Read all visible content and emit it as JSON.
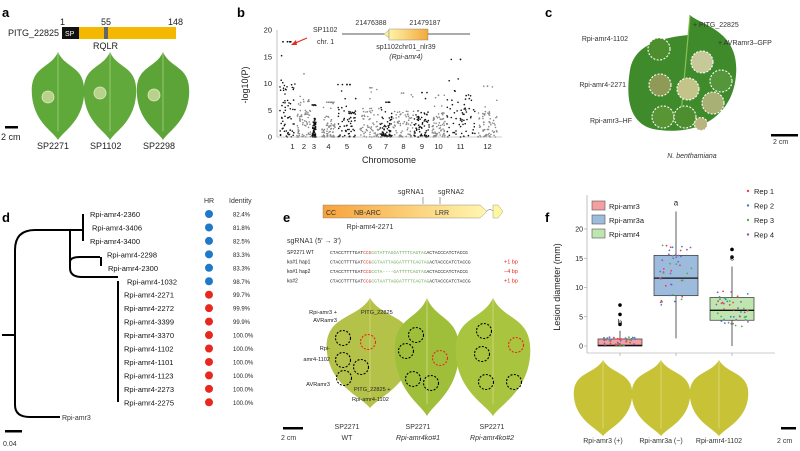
{
  "panels": {
    "a": "a",
    "b": "b",
    "c": "c",
    "d": "d",
    "e": "e",
    "f": "f"
  },
  "panel_a": {
    "protein": "PITG_22825",
    "pos_start": "1",
    "pos_mid": "55",
    "pos_end": "148",
    "sp_label": "SP",
    "motif": "RQLR",
    "scale": "2 cm",
    "leaves": [
      "SP2271",
      "SP1102",
      "SP2298"
    ],
    "colors": {
      "sp": "#111111",
      "protein": "#f5b800",
      "motif": "#666666"
    }
  },
  "panel_b": {
    "inset_label1": "SP1102",
    "inset_label2": "chr. 1",
    "coord_start": "21476388",
    "coord_end": "21479187",
    "gene": "sp1102chr01_nlr39",
    "gene_alias": "(Rpi-amr4)"
  },
  "panel_c": {
    "labels": [
      "Rpi-amr4-1102",
      "Rpi-amr4-2271",
      "Rpi-amr3–HF"
    ],
    "plus1": "+ PITG_22825",
    "plus2": "+ AVRamr3–GFP",
    "scale": "2 cm",
    "species": "N. benthamiana"
  },
  "panel_d": {
    "hr_header": "HR",
    "identity_header": "Identity",
    "scale": "0.04",
    "outgroup": "Rpi-amr3",
    "rows": [
      {
        "name": "Rpi-amr4-2360",
        "hr": "blue",
        "identity": "82.4%"
      },
      {
        "name": "Rpi-amr4-3406",
        "hr": "blue",
        "identity": "81.8%"
      },
      {
        "name": "Rpi-amr4-3400",
        "hr": "blue",
        "identity": "82.5%"
      },
      {
        "name": "Rpi-amr4-2298",
        "hr": "blue",
        "identity": "83.3%"
      },
      {
        "name": "Rpi-amr4-2300",
        "hr": "blue",
        "identity": "83.3%"
      },
      {
        "name": "Rpi-amr4-1032",
        "hr": "blue",
        "identity": "98.7%"
      },
      {
        "name": "Rpi-amr4-2271",
        "hr": "red",
        "identity": "99.7%"
      },
      {
        "name": "Rpi-amr4-2272",
        "hr": "red",
        "identity": "99.9%"
      },
      {
        "name": "Rpi-amr4-3399",
        "hr": "red",
        "identity": "99.9%"
      },
      {
        "name": "Rpi-amr4-3370",
        "hr": "red",
        "identity": "100.0%"
      },
      {
        "name": "Rpi-amr4-1102",
        "hr": "red",
        "identity": "100.0%"
      },
      {
        "name": "Rpi-amr4-1101",
        "hr": "red",
        "identity": "100.0%"
      },
      {
        "name": "Rpi-amr4-1123",
        "hr": "red",
        "identity": "100.0%"
      },
      {
        "name": "Rpi-amr4-2273",
        "hr": "red",
        "identity": "100.0%"
      },
      {
        "name": "Rpi-amr4-2275",
        "hr": "red",
        "identity": "100.0%"
      }
    ],
    "colors": {
      "blue": "#1f78c8",
      "red": "#e8281e"
    }
  },
  "panel_e": {
    "sgrna1": "sgRNA1",
    "sgrna2": "sgRNA2",
    "domains": [
      "CC",
      "NB-ARC",
      "LRR"
    ],
    "gene": "Rpi-amr4-2271",
    "seq_header": "sgRNA1 (5′ → 3′)",
    "seqs": [
      {
        "label": "SP2271 WT",
        "a": "CTACCTTTTGAT",
        "pam": "CCG",
        "b": "CGTATTAGGATTTTCAGTAG",
        "c": "ACTACCCATCTACCG",
        "note": ""
      },
      {
        "label": "ko#1 hap1",
        "a": "CTACCTTTTGAT",
        "pam": "CCG",
        "b": "CGTAATTAGGATTTTCAGTAG",
        "c": "ACTACCCATCTACCG",
        "note": "+1 bp"
      },
      {
        "label": "ko#1 hap2",
        "a": "CTACCTTTTGAT",
        "pam": "CCG",
        "b": "CGTA----GATTTTCAGTAG",
        "c": "ACTACCCATCTACCG",
        "note": "−4 bp"
      },
      {
        "label": "ko#2",
        "a": "CTACCTTTTGAT",
        "pam": "CCG",
        "b": "CGTAATTAGGATTTTCAGTAG",
        "c": "ACTACCCATCTACCG",
        "note": "+1 bp"
      }
    ],
    "leaf_labels": [
      "Rpi-amr3 +",
      "AVRamr3",
      "PITG_22825",
      "Rpi-",
      "amr4-1102",
      "AVRamr3",
      "PITG_22825 +",
      "Rpi-amr4-1102"
    ],
    "scale": "2 cm",
    "leaves": [
      {
        "l1": "SP2271",
        "l2": "WT"
      },
      {
        "l1": "SP2271",
        "l2": "Rpi-amr4ko#1"
      },
      {
        "l1": "SP2271",
        "l2": "Rpi-amr4ko#2"
      }
    ]
  },
  "chart_data": [
    {
      "type": "scatter",
      "panel": "b",
      "xlabel": "Chromosome",
      "ylabel": "-log10(P)",
      "ylim": [
        0,
        20
      ],
      "yticks": [
        "0",
        "5",
        "10",
        "15",
        "20"
      ],
      "categories": [
        "1",
        "2",
        "3",
        "4",
        "5",
        "6",
        "7",
        "8",
        "9",
        "10",
        "11",
        "12"
      ],
      "peak_values": [
        17.8,
        11.8,
        6.0,
        6.5,
        9.8,
        9.2,
        6.5,
        8.2,
        8.3,
        7.8,
        14.5,
        9.5
      ],
      "colors": [
        "#111111",
        "#888888"
      ]
    },
    {
      "type": "box",
      "panel": "f",
      "ylabel": "Lesion diameter (mm)",
      "ylim": [
        0,
        23
      ],
      "yticks": [
        "0",
        "5",
        "10",
        "15",
        "20"
      ],
      "categories": [
        "Rpi-amr3 (+)",
        "Rpi-amr3a (−)",
        "Rpi-amr4-1102"
      ],
      "series": [
        {
          "name": "Rpi-amr3",
          "color": "#f4a0a0",
          "min": 0,
          "q1": 0,
          "median": 0.1,
          "q3": 1.2,
          "max": 2.6,
          "outliers": [
            3.7,
            5.4,
            7.0
          ],
          "letter": "b"
        },
        {
          "name": "Rpi-amr3a",
          "color": "#9dbbdc",
          "min": 1.3,
          "q1": 8.6,
          "median": 11.6,
          "q3": 15.5,
          "max": 23.0,
          "outliers": [],
          "letter": "a"
        },
        {
          "name": "Rpi-amr4",
          "color": "#bfe5b0",
          "min": 0,
          "q1": 4.4,
          "median": 6.1,
          "q3": 8.3,
          "max": 13.6,
          "outliers": [
            15.2,
            16.5
          ],
          "letter": "c"
        }
      ],
      "reps": [
        {
          "name": "Rep 1",
          "color": "#e8414e"
        },
        {
          "name": "Rep 2",
          "color": "#3f82c9"
        },
        {
          "name": "Rep 3",
          "color": "#4cb050"
        },
        {
          "name": "Rep 4",
          "color": "#9a53b5"
        }
      ],
      "legend": "top",
      "scale": "2 cm"
    }
  ]
}
